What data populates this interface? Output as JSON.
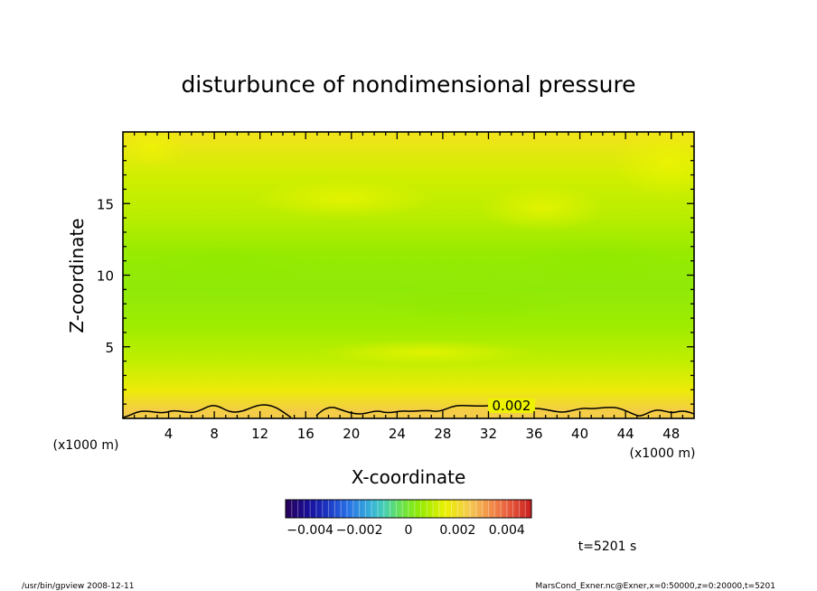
{
  "chart_data": {
    "type": "heatmap",
    "title": "disturbunce of nondimensional pressure",
    "xlabel": "X-coordinate",
    "ylabel": "Z-coordinate",
    "x_unit_left": "(x1000 m)",
    "x_unit_right": "(x1000 m)",
    "xlim": [
      0,
      50
    ],
    "ylim": [
      0,
      20
    ],
    "x_ticks": [
      4,
      8,
      12,
      16,
      20,
      24,
      28,
      32,
      36,
      40,
      44,
      48
    ],
    "x_tick_labels": [
      "4",
      "8",
      "12",
      "16",
      "20",
      "24",
      "28",
      "32",
      "36",
      "40",
      "44",
      "48"
    ],
    "y_ticks": [
      5,
      10,
      15
    ],
    "y_tick_labels": [
      "5",
      "10",
      "15"
    ],
    "contour_label": "0.002",
    "contour_level": 0.002,
    "colorbar": {
      "range": [
        -0.005,
        0.005
      ],
      "ticks": [
        -0.004,
        -0.002,
        0,
        0.002,
        0.004
      ],
      "tick_labels": [
        "−0.004",
        "−0.002",
        "0",
        "0.002",
        "0.004"
      ]
    },
    "time_label": "t=5201 s",
    "field_bands": [
      {
        "z": 0.5,
        "value": 0.0024
      },
      {
        "z": 2,
        "value": 0.0016
      },
      {
        "z": 4,
        "value": 0.001
      },
      {
        "z": 6.5,
        "value": 0.0006
      },
      {
        "z": 9,
        "value": 0.0004
      },
      {
        "z": 11.5,
        "value": 0.0005
      },
      {
        "z": 14,
        "value": 0.0009
      },
      {
        "z": 17,
        "value": 0.0012
      },
      {
        "z": 19.5,
        "value": 0.0018
      }
    ]
  },
  "footer": {
    "left": "/usr/bin/gpview   2008-12-11",
    "right": "MarsCond_Exner.nc@Exner,x=0:50000,z=0:20000,t=5201"
  },
  "colors": {
    "frame": "#000000",
    "background": "#ffffff"
  }
}
